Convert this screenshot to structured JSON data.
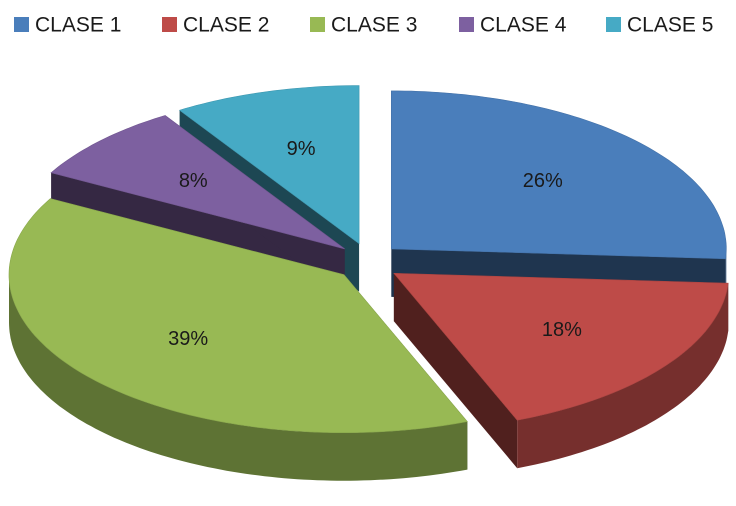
{
  "chart_data": {
    "type": "pie",
    "categories": [
      "CLASE 1",
      "CLASE 2",
      "CLASE 3",
      "CLASE 4",
      "CLASE 5"
    ],
    "values": [
      26,
      18,
      39,
      8,
      9
    ],
    "value_labels": [
      "26%",
      "18%",
      "39%",
      "8%",
      "9%"
    ],
    "colors": [
      "#4a7ebb",
      "#be4b48",
      "#98b954",
      "#7d60a0",
      "#46aac5"
    ],
    "legend": "top",
    "exploded": true,
    "three_d": true
  }
}
